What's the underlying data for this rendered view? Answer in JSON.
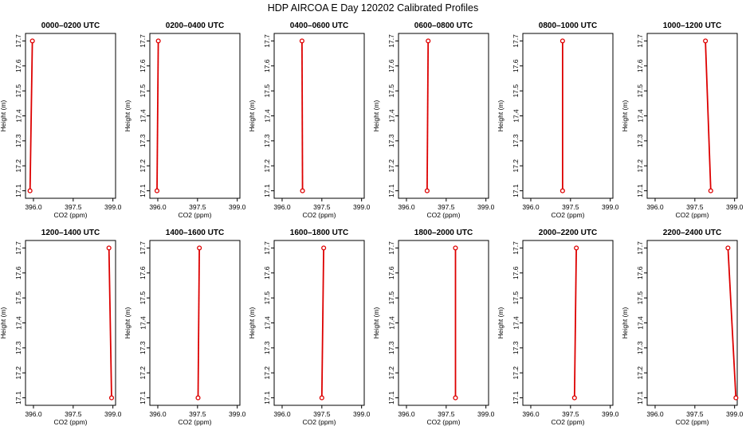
{
  "figure": {
    "title": "HDP AIRCOA E  Day 120202  Calibrated Profiles"
  },
  "colors": {
    "line": "#dd0000",
    "marker": "#dd0000",
    "axis": "#000000"
  },
  "chart_data": [
    {
      "type": "line",
      "title": "0000–0200 UTC",
      "xlabel": "CO2 (ppm)",
      "ylabel": "Height (m)",
      "xlim": [
        395.7,
        399.1
      ],
      "ylim": [
        17.07,
        17.73
      ],
      "xticks": [
        "396.0",
        "397.5",
        "399.0"
      ],
      "yticks": [
        "17.1",
        "17.2",
        "17.3",
        "17.4",
        "17.5",
        "17.6",
        "17.7"
      ],
      "grid": false,
      "legend": "none",
      "x": [
        395.96,
        395.87
      ],
      "y": [
        17.7,
        17.1
      ]
    },
    {
      "type": "line",
      "title": "0200–0400 UTC",
      "xlabel": "CO2 (ppm)",
      "ylabel": "Height (m)",
      "xlim": [
        395.7,
        399.1
      ],
      "ylim": [
        17.07,
        17.73
      ],
      "xticks": [
        "396.0",
        "397.5",
        "399.0"
      ],
      "yticks": [
        "17.1",
        "17.2",
        "17.3",
        "17.4",
        "17.5",
        "17.6",
        "17.7"
      ],
      "grid": false,
      "legend": "none",
      "x": [
        396.02,
        395.97
      ],
      "y": [
        17.7,
        17.1
      ]
    },
    {
      "type": "line",
      "title": "0400–0600 UTC",
      "xlabel": "CO2 (ppm)",
      "ylabel": "Height (m)",
      "xlim": [
        395.7,
        399.1
      ],
      "ylim": [
        17.07,
        17.73
      ],
      "xticks": [
        "396.0",
        "397.5",
        "399.0"
      ],
      "yticks": [
        "17.1",
        "17.2",
        "17.3",
        "17.4",
        "17.5",
        "17.6",
        "17.7"
      ],
      "grid": false,
      "legend": "none",
      "x": [
        396.75,
        396.77
      ],
      "y": [
        17.7,
        17.1
      ]
    },
    {
      "type": "line",
      "title": "0600–0800 UTC",
      "xlabel": "CO2 (ppm)",
      "ylabel": "Height (m)",
      "xlim": [
        395.7,
        399.1
      ],
      "ylim": [
        17.07,
        17.73
      ],
      "xticks": [
        "396.0",
        "397.5",
        "399.0"
      ],
      "yticks": [
        "17.1",
        "17.2",
        "17.3",
        "17.4",
        "17.5",
        "17.6",
        "17.7"
      ],
      "grid": false,
      "legend": "none",
      "x": [
        396.82,
        396.78
      ],
      "y": [
        17.7,
        17.1
      ]
    },
    {
      "type": "line",
      "title": "0800–1000 UTC",
      "xlabel": "CO2 (ppm)",
      "ylabel": "Height (m)",
      "xlim": [
        395.7,
        399.1
      ],
      "ylim": [
        17.07,
        17.73
      ],
      "xticks": [
        "396.0",
        "397.5",
        "399.0"
      ],
      "yticks": [
        "17.1",
        "17.2",
        "17.3",
        "17.4",
        "17.5",
        "17.6",
        "17.7"
      ],
      "grid": false,
      "legend": "none",
      "x": [
        397.2,
        397.2
      ],
      "y": [
        17.7,
        17.1
      ]
    },
    {
      "type": "line",
      "title": "1000–1200 UTC",
      "xlabel": "CO2 (ppm)",
      "ylabel": "Height (m)",
      "xlim": [
        395.7,
        399.1
      ],
      "ylim": [
        17.07,
        17.73
      ],
      "xticks": [
        "396.0",
        "397.5",
        "399.0"
      ],
      "yticks": [
        "17.1",
        "17.2",
        "17.3",
        "17.4",
        "17.5",
        "17.6",
        "17.7"
      ],
      "grid": false,
      "legend": "none",
      "x": [
        397.9,
        398.1
      ],
      "y": [
        17.7,
        17.1
      ]
    },
    {
      "type": "line",
      "title": "1200–1400 UTC",
      "xlabel": "CO2 (ppm)",
      "ylabel": "Height (m)",
      "xlim": [
        395.7,
        399.1
      ],
      "ylim": [
        17.07,
        17.73
      ],
      "xticks": [
        "396.0",
        "397.5",
        "399.0"
      ],
      "yticks": [
        "17.1",
        "17.2",
        "17.3",
        "17.4",
        "17.5",
        "17.6",
        "17.7"
      ],
      "grid": false,
      "legend": "none",
      "x": [
        398.85,
        398.95
      ],
      "y": [
        17.7,
        17.1
      ]
    },
    {
      "type": "line",
      "title": "1400–1600 UTC",
      "xlabel": "CO2 (ppm)",
      "ylabel": "Height (m)",
      "xlim": [
        395.7,
        399.1
      ],
      "ylim": [
        17.07,
        17.73
      ],
      "xticks": [
        "396.0",
        "397.5",
        "399.0"
      ],
      "yticks": [
        "17.1",
        "17.2",
        "17.3",
        "17.4",
        "17.5",
        "17.6",
        "17.7"
      ],
      "grid": false,
      "legend": "none",
      "x": [
        397.57,
        397.52
      ],
      "y": [
        17.7,
        17.1
      ]
    },
    {
      "type": "line",
      "title": "1600–1800 UTC",
      "xlabel": "CO2 (ppm)",
      "ylabel": "Height (m)",
      "xlim": [
        395.7,
        399.1
      ],
      "ylim": [
        17.07,
        17.73
      ],
      "xticks": [
        "396.0",
        "397.5",
        "399.0"
      ],
      "yticks": [
        "17.1",
        "17.2",
        "17.3",
        "17.4",
        "17.5",
        "17.6",
        "17.7"
      ],
      "grid": false,
      "legend": "none",
      "x": [
        397.57,
        397.5
      ],
      "y": [
        17.7,
        17.1
      ]
    },
    {
      "type": "line",
      "title": "1800–2000 UTC",
      "xlabel": "CO2 (ppm)",
      "ylabel": "Height (m)",
      "xlim": [
        395.7,
        399.1
      ],
      "ylim": [
        17.07,
        17.73
      ],
      "xticks": [
        "396.0",
        "397.5",
        "399.0"
      ],
      "yticks": [
        "17.1",
        "17.2",
        "17.3",
        "17.4",
        "17.5",
        "17.6",
        "17.7"
      ],
      "grid": false,
      "legend": "none",
      "x": [
        397.85,
        397.85
      ],
      "y": [
        17.7,
        17.1
      ]
    },
    {
      "type": "line",
      "title": "2000–2200 UTC",
      "xlabel": "CO2 (ppm)",
      "ylabel": "Height (m)",
      "xlim": [
        395.7,
        399.1
      ],
      "ylim": [
        17.07,
        17.73
      ],
      "xticks": [
        "396.0",
        "397.5",
        "399.0"
      ],
      "yticks": [
        "17.1",
        "17.2",
        "17.3",
        "17.4",
        "17.5",
        "17.6",
        "17.7"
      ],
      "grid": false,
      "legend": "none",
      "x": [
        397.72,
        397.65
      ],
      "y": [
        17.7,
        17.1
      ]
    },
    {
      "type": "line",
      "title": "2200–2400 UTC",
      "xlabel": "CO2 (ppm)",
      "ylabel": "Height (m)",
      "xlim": [
        395.7,
        399.1
      ],
      "ylim": [
        17.07,
        17.73
      ],
      "xticks": [
        "396.0",
        "397.5",
        "399.0"
      ],
      "yticks": [
        "17.1",
        "17.2",
        "17.3",
        "17.4",
        "17.5",
        "17.6",
        "17.7"
      ],
      "grid": false,
      "legend": "none",
      "x": [
        398.75,
        399.05
      ],
      "y": [
        17.7,
        17.1
      ]
    }
  ]
}
